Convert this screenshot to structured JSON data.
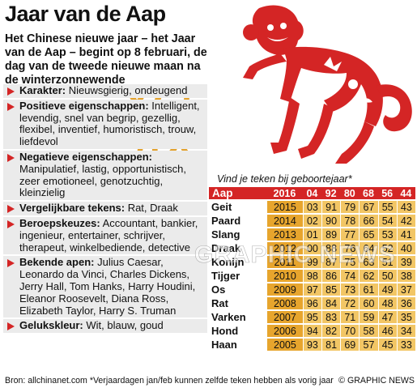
{
  "title": "Jaar van de Aap",
  "intro": "Het Chinese nieuwe jaar – het Jaar van de Aap – begint op 8 februari, de dag van de tweede nieuwe maan na de winterzonnewende",
  "hanzi": "猴",
  "info": [
    {
      "label": "Karakter:",
      "text": " Nieuwsgierig, ondeugend"
    },
    {
      "label": "Positieve eigenschappen:",
      "text": " Intelligent, levendig, snel van begrip, gezellig, flexibel, inventief, humoristisch, trouw, liefdevol"
    },
    {
      "label": "Negatieve eigenschappen:",
      "text": " Manipulatief, lastig, opportunistisch, zeer emotioneel, genotzuchtig, kleinzielig"
    },
    {
      "label": "Vergelijkbare tekens:",
      "text": " Rat, Draak"
    },
    {
      "label": "Beroepskeuzes:",
      "text": " Accountant, bankier, ingenieur, entertainer, schrijver, therapeut, winkelbediende, detective"
    },
    {
      "label": "Bekende apen:",
      "text": " Julius Caesar, Leonardo da Vinci, Charles Dickens, Jerry Hall, Tom Hanks, Harry Houdini, Eleanor Roosevelt, Diana Ross, Elizabeth Taylor, Harry S. Truman"
    },
    {
      "label": "Gelukskleur:",
      "text": " Wit, blauw, goud"
    }
  ],
  "table": {
    "subtitle": "Vind je teken bij geboortejaar*",
    "headers": [
      "Aap",
      "2016",
      "04",
      "92",
      "80",
      "68",
      "56",
      "44"
    ],
    "rows": [
      {
        "sign": "Geit",
        "years": [
          "2015",
          "03",
          "91",
          "79",
          "67",
          "55",
          "43"
        ]
      },
      {
        "sign": "Paard",
        "years": [
          "2014",
          "02",
          "90",
          "78",
          "66",
          "54",
          "42"
        ]
      },
      {
        "sign": "Slang",
        "years": [
          "2013",
          "01",
          "89",
          "77",
          "65",
          "53",
          "41"
        ]
      },
      {
        "sign": "Draak",
        "years": [
          "2012",
          "00",
          "88",
          "76",
          "64",
          "52",
          "40"
        ]
      },
      {
        "sign": "Konijn",
        "years": [
          "2011",
          "99",
          "87",
          "75",
          "63",
          "51",
          "39"
        ]
      },
      {
        "sign": "Tijger",
        "years": [
          "2010",
          "98",
          "86",
          "74",
          "62",
          "50",
          "38"
        ]
      },
      {
        "sign": "Os",
        "years": [
          "2009",
          "97",
          "85",
          "73",
          "61",
          "49",
          "37"
        ]
      },
      {
        "sign": "Rat",
        "years": [
          "2008",
          "96",
          "84",
          "72",
          "60",
          "48",
          "36"
        ]
      },
      {
        "sign": "Varken",
        "years": [
          "2007",
          "95",
          "83",
          "71",
          "59",
          "47",
          "35"
        ]
      },
      {
        "sign": "Hond",
        "years": [
          "2006",
          "94",
          "82",
          "70",
          "58",
          "46",
          "34"
        ]
      },
      {
        "sign": "Haan",
        "years": [
          "2005",
          "93",
          "81",
          "69",
          "57",
          "45",
          "33"
        ]
      }
    ]
  },
  "watermark": "GRAPHIC NEWS",
  "footer": {
    "source": "Bron: allchinanet.com  *Verjaardagen jan/feb kunnen zelfde teken hebben als vorig jaar",
    "credit": "GRAPHIC NEWS"
  },
  "colors": {
    "red": "#d42525",
    "gold": "#e3a12c",
    "cell": "#f2c665",
    "cell_first": "#e7a52d",
    "panel": "#ebebeb"
  }
}
